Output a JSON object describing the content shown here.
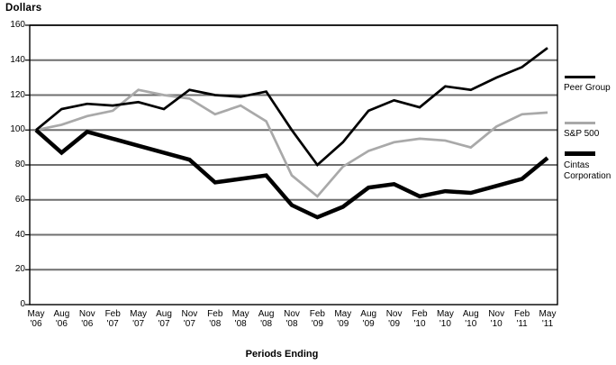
{
  "colors": {
    "background": "#ffffff",
    "grid": "#6f6f6f",
    "axis": "#000000",
    "text": "#000000",
    "peer_group_line": "#000000",
    "sp500_line": "#a9a9a9",
    "cintas_line": "#000000"
  },
  "chart_data": {
    "type": "line",
    "title": "Dollars",
    "ylabel": "Dollars",
    "xlabel": "Periods Ending",
    "ylim": [
      0,
      160
    ],
    "y_ticks": [
      0,
      20,
      40,
      60,
      80,
      100,
      120,
      140,
      160
    ],
    "grid": "horizontal gridlines on",
    "legend_position": "right-outside",
    "categories": [
      "May '06",
      "Aug '06",
      "Nov '06",
      "Feb '07",
      "May '07",
      "Aug '07",
      "Nov '07",
      "Feb '08",
      "May '08",
      "Aug '08",
      "Nov '08",
      "Feb '09",
      "May '09",
      "Aug '09",
      "Nov '09",
      "Feb '10",
      "May '10",
      "Aug '10",
      "Nov '10",
      "Feb '11",
      "May '11"
    ],
    "series": [
      {
        "name": "S&P 500",
        "color": "#a9a9a9",
        "stroke_width": 2.7,
        "values": [
          100,
          103,
          108,
          111,
          123,
          120,
          118,
          109,
          114,
          105,
          74,
          62,
          79,
          88,
          93,
          95,
          94,
          90,
          102,
          109,
          110
        ]
      },
      {
        "name": "Peer Group",
        "color": "#000000",
        "stroke_width": 2.7,
        "values": [
          100,
          112,
          115,
          114,
          116,
          112,
          123,
          120,
          119,
          122,
          100,
          80,
          93,
          111,
          117,
          113,
          125,
          123,
          130,
          136,
          147
        ]
      },
      {
        "name": "Cintas Corporation",
        "color": "#000000",
        "stroke_width": 4.5,
        "values": [
          100,
          87,
          99,
          95,
          91,
          87,
          83,
          70,
          72,
          74,
          57,
          50,
          56,
          67,
          69,
          62,
          65,
          64,
          68,
          72,
          84
        ]
      }
    ],
    "legend_order": [
      "Peer Group",
      "S&P 500",
      "Cintas Corporation"
    ]
  }
}
